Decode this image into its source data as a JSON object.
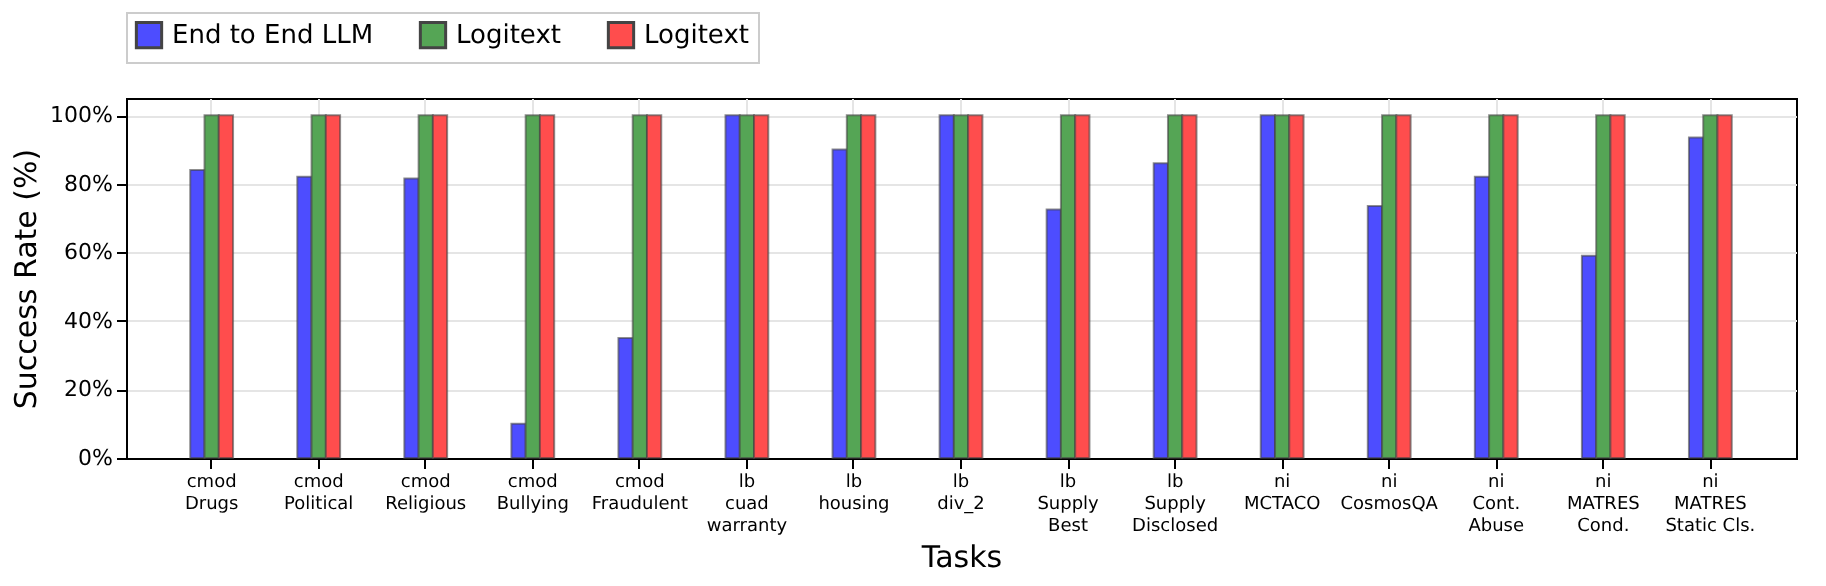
{
  "chart_data": {
    "type": "bar",
    "xlabel": "Tasks",
    "ylabel": "Success Rate (%)",
    "categories": [
      "cmod\nDrugs",
      "cmod\nPolitical",
      "cmod\nReligious",
      "cmod\nBullying",
      "cmod\nFraudulent",
      "lb\ncuad\nwarranty",
      "lb\nhousing",
      "lb\ndiv_2",
      "lb\nSupply\nBest",
      "lb\nSupply\nDisclosed",
      "ni\nMCTACO",
      "ni\nCosmosQA",
      "ni\nCont.\nAbuse",
      "ni\nMATRES\nCond.",
      "ni\nMATRES\nStatic Cls."
    ],
    "series": [
      {
        "name": "End to End LLM",
        "color": "#4d4dff",
        "values": [
          84,
          82,
          81.5,
          10,
          35,
          100,
          90,
          100,
          72.5,
          86,
          100,
          73.5,
          82,
          59,
          93.5
        ]
      },
      {
        "name": "Logitext",
        "color": "#55a555",
        "values": [
          100,
          100,
          100,
          100,
          100,
          100,
          100,
          100,
          100,
          100,
          100,
          100,
          100,
          100,
          100
        ]
      },
      {
        "name": "Logitext",
        "color": "#ff4d4d",
        "values": [
          100,
          100,
          100,
          100,
          100,
          100,
          100,
          100,
          100,
          100,
          100,
          100,
          100,
          100,
          100
        ]
      }
    ],
    "ylim": [
      0,
      105
    ],
    "yticks": [
      {
        "value": 0,
        "label": "0%"
      },
      {
        "value": 20,
        "label": "20%"
      },
      {
        "value": 40,
        "label": "40%"
      },
      {
        "value": 60,
        "label": "60%"
      },
      {
        "value": 80,
        "label": "80%"
      },
      {
        "value": 100,
        "label": "100%"
      }
    ],
    "grid": true,
    "legend": "top"
  }
}
